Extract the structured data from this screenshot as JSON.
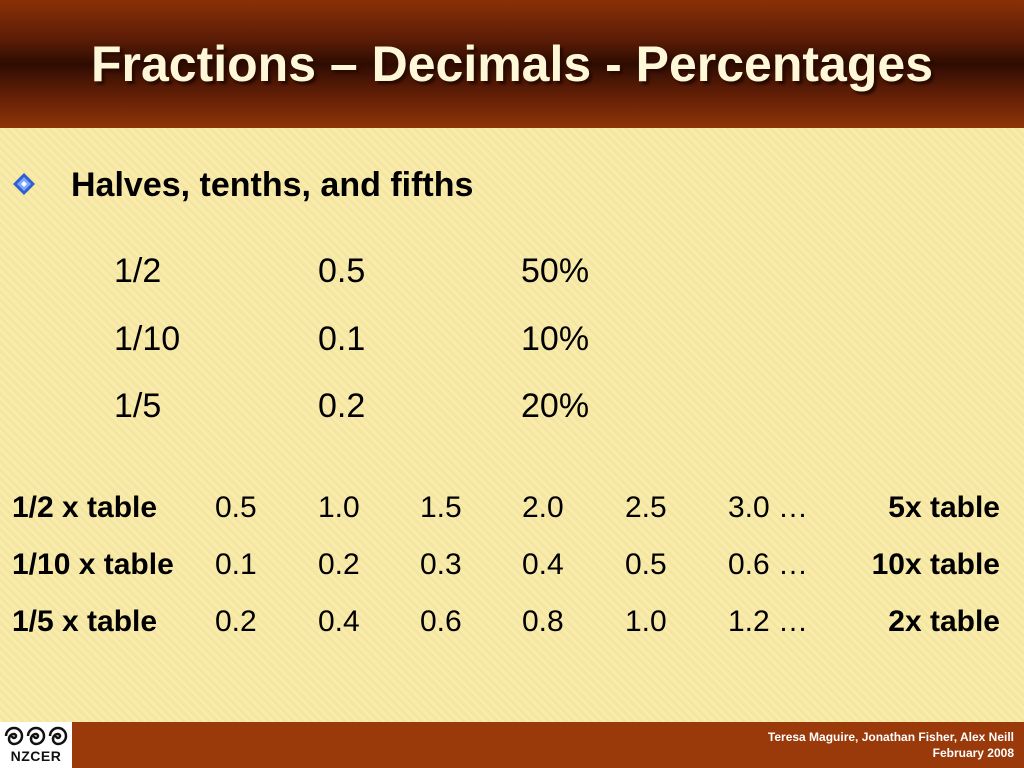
{
  "title": "Fractions – Decimals - Percentages",
  "bullet": {
    "icon": "diamond-bullet-icon",
    "text": "Halves, tenths, and fifths"
  },
  "fdp_rows": [
    {
      "fraction": "1/2",
      "decimal": "0.5",
      "percent": "50%"
    },
    {
      "fraction": "1/10",
      "decimal": "0.1",
      "percent": "10%"
    },
    {
      "fraction": "1/5",
      "decimal": "0.2",
      "percent": "20%"
    }
  ],
  "tables": [
    {
      "label": "1/2  x table",
      "values": [
        "0.5",
        "1.0",
        "1.5",
        "2.0",
        "2.5",
        "3.0 …"
      ],
      "equivalent": "5x table"
    },
    {
      "label": "1/10 x table",
      "values": [
        "0.1",
        "0.2",
        "0.3",
        "0.4",
        "0.5",
        "0.6 …"
      ],
      "equivalent": "10x table"
    },
    {
      "label": "1/5 x table",
      "values": [
        "0.2",
        "0.4",
        "0.6",
        "0.8",
        "1.0",
        "1.2 …"
      ],
      "equivalent": "2x table"
    }
  ],
  "footer": {
    "logo_text": "NZCER",
    "authors": "Teresa Maguire, Jonathan Fisher, Alex Neill",
    "date": "February 2008"
  },
  "colors": {
    "title_bar": "#5e1d06",
    "background": "#f9eba5",
    "footer_bar": "#9a3a0b",
    "bullet": "#2f5fd0"
  }
}
